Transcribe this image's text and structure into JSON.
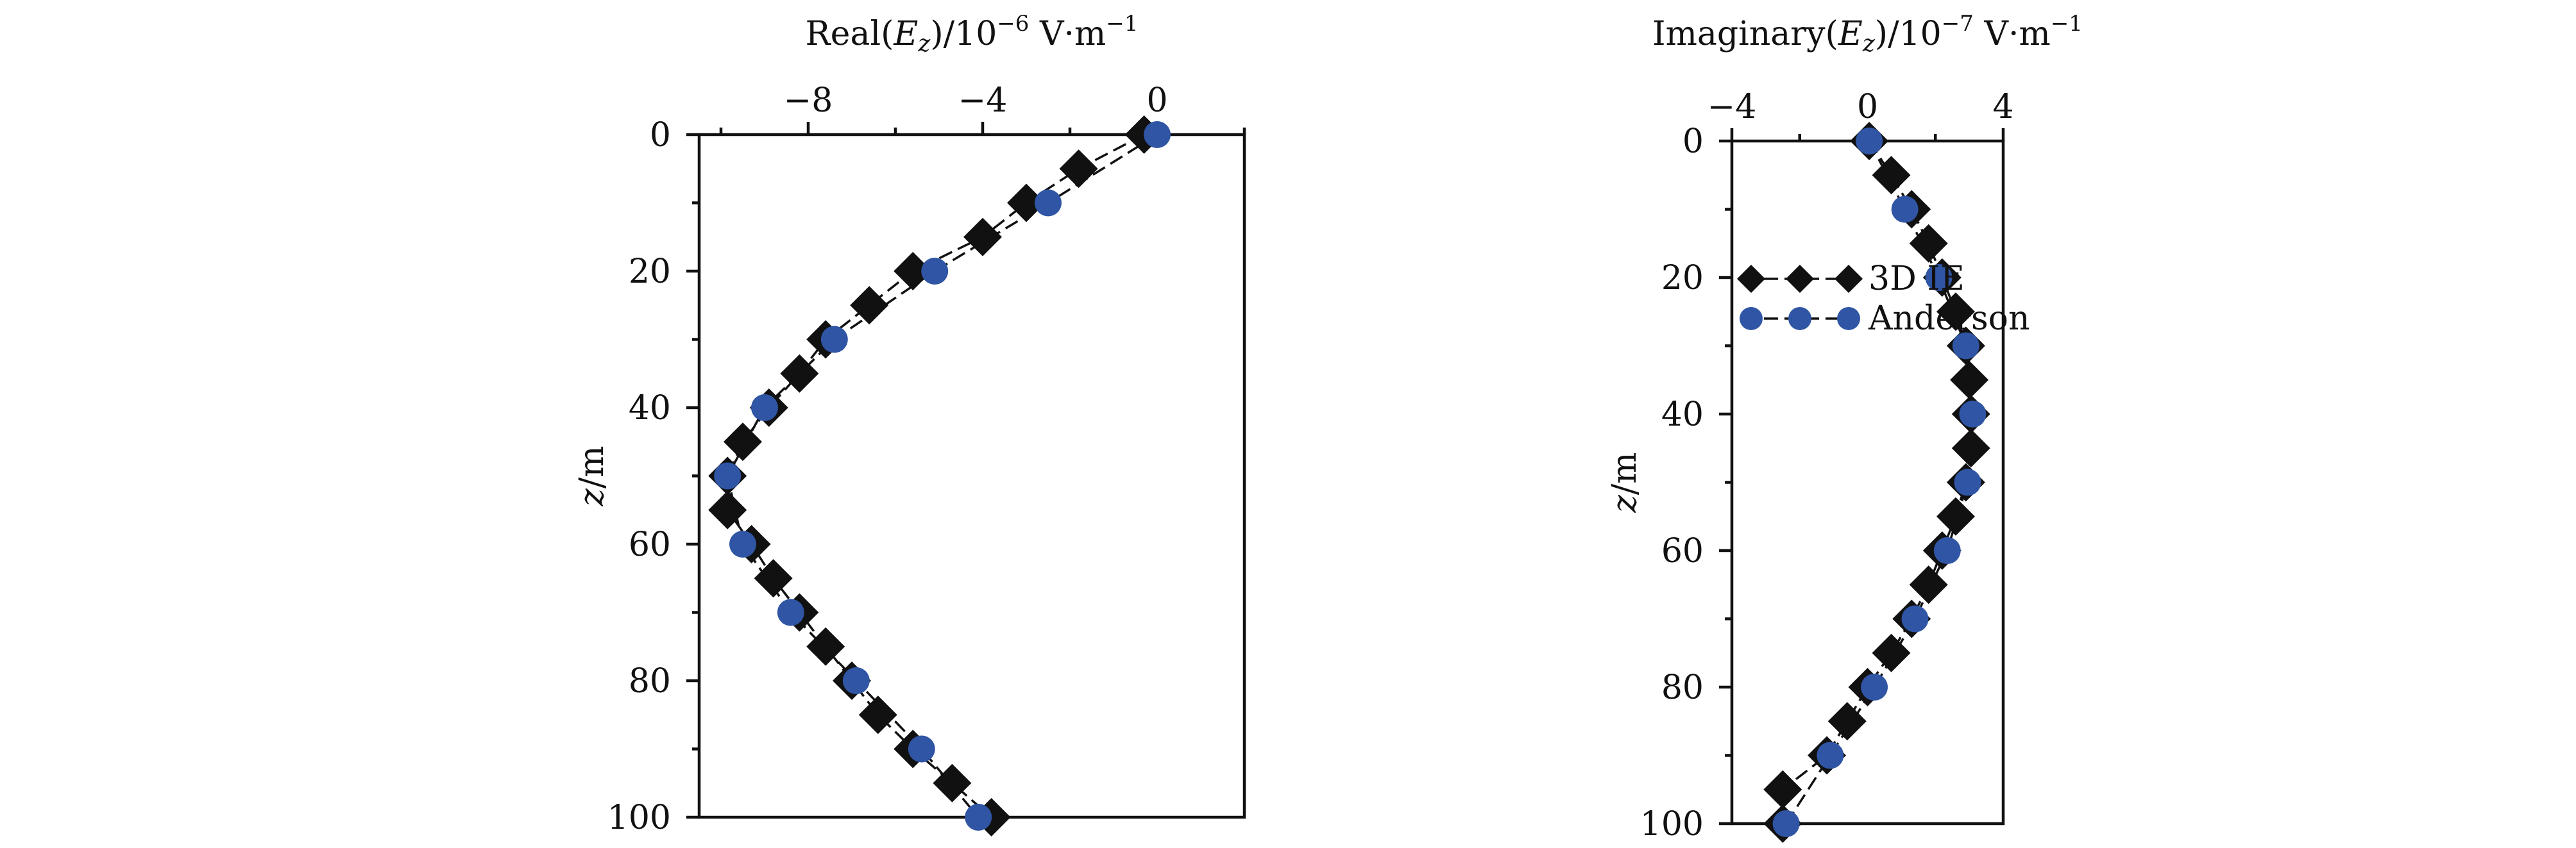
{
  "chart_data": [
    {
      "type": "line",
      "title": "",
      "xlabel": "Real(E_z)/10^-6 V·m^-1",
      "xlabel_parts": {
        "pre": "Real(",
        "var": "E",
        "sub": "z",
        "post": ")/10",
        "exp": "−6",
        "unit": " V·m",
        "unit_exp": "−1"
      },
      "ylabel": "z/m",
      "ylabel_parts": {
        "var": "z",
        "rest": "/m"
      },
      "xlim": [
        -10.5,
        2.0
      ],
      "ylim": [
        0,
        100
      ],
      "y_inverted": true,
      "x_axis_position": "top",
      "x_major_ticks": [
        -8,
        -4,
        0
      ],
      "x_major_tick_labels": [
        "−8",
        "−4",
        "0"
      ],
      "x_minor_ticks": [
        -10,
        -6,
        -2,
        2
      ],
      "y_major_ticks": [
        0,
        20,
        40,
        60,
        80,
        100
      ],
      "y_major_tick_labels": [
        "0",
        "20",
        "40",
        "60",
        "80",
        "100"
      ],
      "y_minor_ticks": [
        10,
        30,
        50,
        70,
        90
      ],
      "legend": null,
      "series": [
        {
          "marker": "diamond",
          "color": "#111111",
          "line": "dashed",
          "x": [
            -0.3,
            -1.8,
            -3.0,
            -4.0,
            -5.6,
            -6.6,
            -7.6,
            -8.2,
            -8.9,
            -9.5,
            -9.85,
            -9.85,
            -9.3,
            -8.8,
            -8.2,
            -7.6,
            -7.0,
            -6.4,
            -5.6,
            -4.7,
            -3.8
          ],
          "y": [
            0,
            5,
            10,
            15,
            20,
            25,
            30,
            35,
            40,
            45,
            50,
            55,
            60,
            65,
            70,
            75,
            80,
            85,
            90,
            95,
            100
          ]
        },
        {
          "marker": "circle",
          "color": "#2f55a4",
          "line": "dashed",
          "x": [
            0.0,
            -2.5,
            -5.1,
            -7.4,
            -9.0,
            -9.85,
            -9.5,
            -8.4,
            -6.9,
            -5.4,
            -4.1
          ],
          "y": [
            0,
            10,
            20,
            30,
            40,
            50,
            60,
            70,
            80,
            90,
            100
          ]
        }
      ]
    },
    {
      "type": "line",
      "title": "",
      "xlabel": "Imaginary(E_z)/10^-7 V·m^-1",
      "xlabel_parts": {
        "pre": "Imaginary(",
        "var": "E",
        "sub": "z",
        "post": ")/10",
        "exp": "−7",
        "unit": " V·m",
        "unit_exp": "−1"
      },
      "ylabel": "z/m",
      "ylabel_parts": {
        "var": "z",
        "rest": "/m"
      },
      "xlim": [
        -4,
        4
      ],
      "ylim": [
        0,
        100
      ],
      "y_inverted": true,
      "x_axis_position": "top",
      "x_major_ticks": [
        -4,
        0,
        4
      ],
      "x_major_tick_labels": [
        "−4",
        "0",
        "4"
      ],
      "x_minor_ticks": [
        -2,
        2
      ],
      "y_major_ticks": [
        0,
        20,
        40,
        60,
        80,
        100
      ],
      "y_major_tick_labels": [
        "0",
        "20",
        "40",
        "60",
        "80",
        "100"
      ],
      "y_minor_ticks": [
        10,
        30,
        50,
        70,
        90
      ],
      "legend": {
        "placement": "upper-left",
        "entries": [
          "3D IE",
          "Anderson"
        ]
      },
      "series": [
        {
          "name": "3D IE",
          "marker": "diamond",
          "color": "#111111",
          "line": "dashed",
          "x": [
            0.05,
            0.7,
            1.3,
            1.8,
            2.2,
            2.6,
            2.9,
            3.0,
            3.05,
            3.05,
            2.9,
            2.6,
            2.2,
            1.8,
            1.3,
            0.7,
            0.0,
            -0.6,
            -1.2,
            -2.5,
            -2.5
          ],
          "y": [
            0,
            5,
            10,
            15,
            20,
            25,
            30,
            35,
            40,
            45,
            50,
            55,
            60,
            65,
            70,
            75,
            80,
            85,
            90,
            95,
            100
          ]
        },
        {
          "name": "Anderson",
          "marker": "circle",
          "color": "#2f55a4",
          "line": "dashed",
          "x": [
            0.05,
            1.1,
            2.1,
            2.9,
            3.1,
            2.95,
            2.35,
            1.4,
            0.2,
            -1.1,
            -2.4
          ],
          "y": [
            0,
            10,
            20,
            30,
            40,
            50,
            60,
            70,
            80,
            90,
            100
          ]
        }
      ]
    }
  ]
}
